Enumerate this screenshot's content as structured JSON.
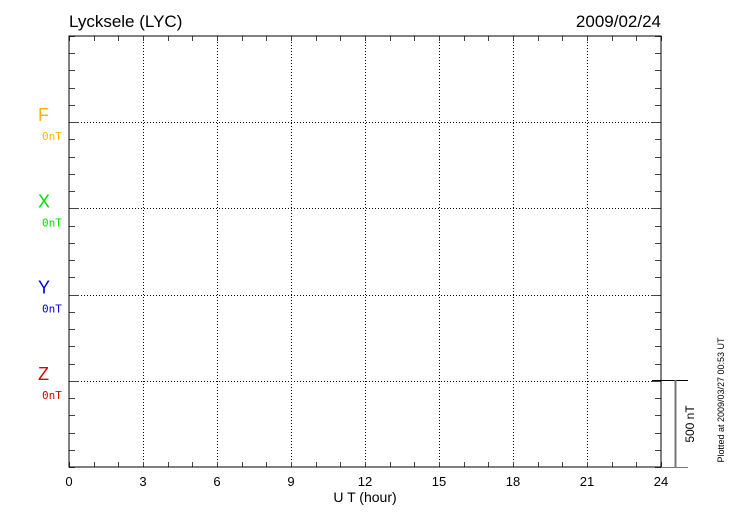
{
  "chart_data": {
    "type": "line",
    "title": "Lycksele (LYC)",
    "date": "2009/02/24",
    "xlabel": "U T (hour)",
    "xlim": [
      0,
      24
    ],
    "xticks": [
      "0",
      "3",
      "6",
      "9",
      "12",
      "15",
      "18",
      "21",
      "24"
    ],
    "grid": true,
    "panels": [
      {
        "name": "F",
        "baseline": "0nT",
        "color": "#ffb300"
      },
      {
        "name": "X",
        "baseline": "0nT",
        "color": "#00e000"
      },
      {
        "name": "Y",
        "baseline": "0nT",
        "color": "#0000e0"
      },
      {
        "name": "Z",
        "baseline": "0nT",
        "color": "#e00000"
      }
    ],
    "series": [],
    "scale_bar": "500 nT",
    "footnote": "Plotted at 2009/03/27 00:53 UT"
  }
}
